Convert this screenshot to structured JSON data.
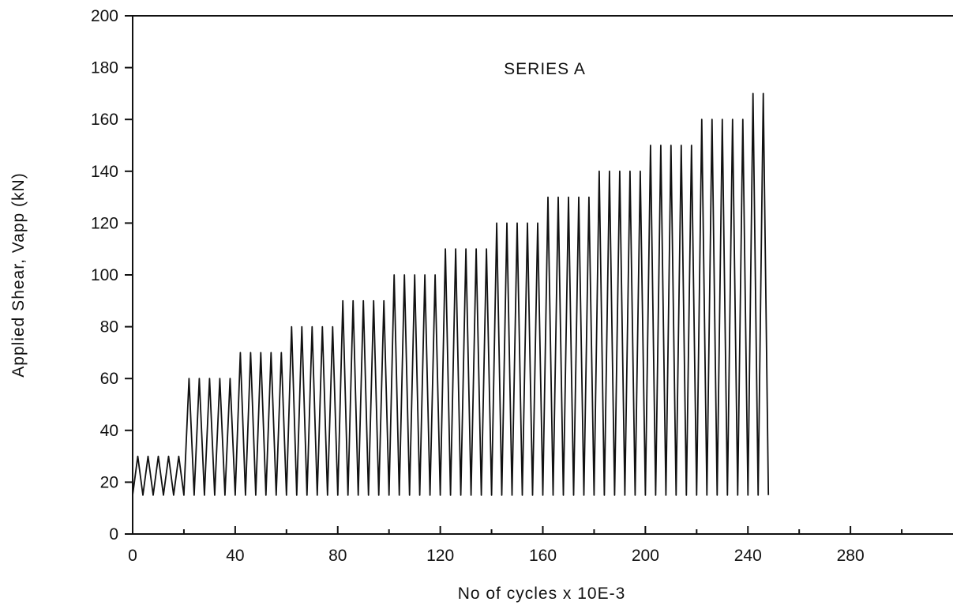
{
  "chart_data": {
    "type": "line",
    "title": "SERIES A",
    "xlabel": "No of cycles x 10E-3",
    "ylabel": "Applied Shear, Vapp (kN)",
    "xlim": [
      0,
      320
    ],
    "ylim": [
      0,
      200
    ],
    "x_ticks": [
      0,
      40,
      80,
      120,
      160,
      200,
      240,
      280
    ],
    "y_ticks": [
      0,
      20,
      40,
      60,
      80,
      100,
      120,
      140,
      160,
      180,
      200
    ],
    "grid": false,
    "legend": "none",
    "series": [
      {
        "min_load": 15,
        "stages": [
          {
            "max_load": 30,
            "start_cycles": 0,
            "end_cycles": 20,
            "cycles_per_peak": 4
          },
          {
            "max_load": 60,
            "start_cycles": 20,
            "end_cycles": 40,
            "cycles_per_peak": 4
          },
          {
            "max_load": 70,
            "start_cycles": 40,
            "end_cycles": 60,
            "cycles_per_peak": 4
          },
          {
            "max_load": 80,
            "start_cycles": 60,
            "end_cycles": 80,
            "cycles_per_peak": 4
          },
          {
            "max_load": 90,
            "start_cycles": 80,
            "end_cycles": 100,
            "cycles_per_peak": 4
          },
          {
            "max_load": 100,
            "start_cycles": 100,
            "end_cycles": 120,
            "cycles_per_peak": 4
          },
          {
            "max_load": 110,
            "start_cycles": 120,
            "end_cycles": 140,
            "cycles_per_peak": 4
          },
          {
            "max_load": 120,
            "start_cycles": 140,
            "end_cycles": 160,
            "cycles_per_peak": 4
          },
          {
            "max_load": 130,
            "start_cycles": 160,
            "end_cycles": 180,
            "cycles_per_peak": 4
          },
          {
            "max_load": 140,
            "start_cycles": 180,
            "end_cycles": 200,
            "cycles_per_peak": 4
          },
          {
            "max_load": 150,
            "start_cycles": 200,
            "end_cycles": 220,
            "cycles_per_peak": 4
          },
          {
            "max_load": 160,
            "start_cycles": 220,
            "end_cycles": 240,
            "cycles_per_peak": 4
          },
          {
            "max_load": 170,
            "start_cycles": 240,
            "end_cycles": 248,
            "cycles_per_peak": 4
          }
        ]
      }
    ]
  }
}
